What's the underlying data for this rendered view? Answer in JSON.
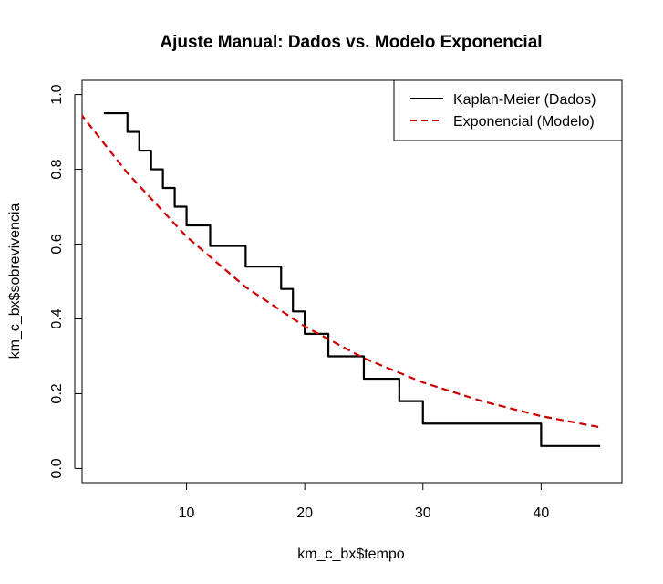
{
  "chart_data": {
    "type": "line",
    "title": "Ajuste Manual: Dados vs. Modelo Exponencial",
    "xlabel": "km_c_bx$tempo",
    "ylabel": "km_c_bx$sobrevivencia",
    "xlim": [
      1.16,
      46.84
    ],
    "ylim": [
      -0.038,
      1.038
    ],
    "x_ticks": [
      10,
      20,
      30,
      40
    ],
    "x_tick_labels": [
      "10",
      "20",
      "30",
      "40"
    ],
    "y_ticks": [
      0.0,
      0.2,
      0.4,
      0.6,
      0.8,
      1.0
    ],
    "y_tick_labels": [
      "0.0",
      "0.2",
      "0.4",
      "0.6",
      "0.8",
      "1.0"
    ],
    "grid": false,
    "legend": {
      "position": "top-right",
      "entries": [
        "Kaplan-Meier (Dados)",
        "Exponencial (Modelo)"
      ]
    },
    "series": [
      {
        "name": "Kaplan-Meier (Dados)",
        "style": "step",
        "color": "#000000",
        "x": [
          3,
          5,
          6,
          7,
          8,
          9,
          10,
          12,
          15,
          18,
          19,
          20,
          22,
          25,
          28,
          30,
          40,
          45
        ],
        "y": [
          0.95,
          0.9,
          0.85,
          0.8,
          0.75,
          0.7,
          0.65,
          0.595,
          0.54,
          0.48,
          0.42,
          0.36,
          0.3,
          0.24,
          0.18,
          0.12,
          0.06,
          0.06
        ]
      },
      {
        "name": "Exponencial (Modelo)",
        "style": "dashed",
        "color": "#cc0000",
        "x": [
          1,
          5,
          10,
          15,
          20,
          25,
          30,
          35,
          40,
          45
        ],
        "y": [
          0.95,
          0.79,
          0.62,
          0.485,
          0.38,
          0.295,
          0.23,
          0.18,
          0.14,
          0.11
        ]
      }
    ]
  }
}
